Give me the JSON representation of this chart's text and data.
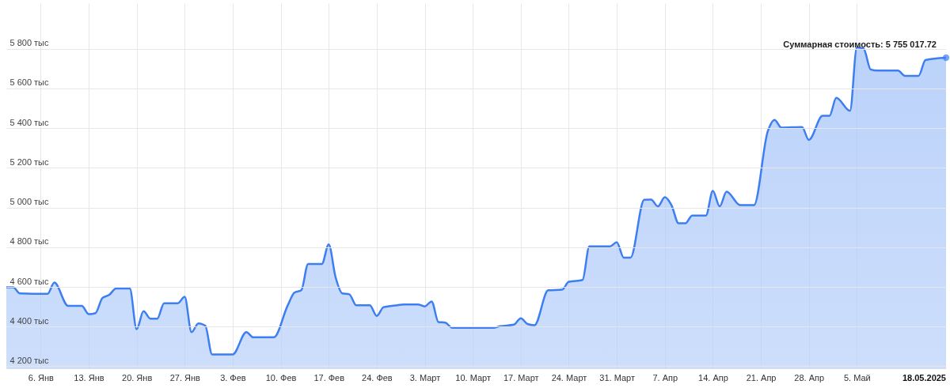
{
  "chart_data": {
    "type": "area",
    "x": [
      "2025-01-01",
      "2025-01-02",
      "2025-01-03",
      "2025-01-07",
      "2025-01-08",
      "2025-01-10",
      "2025-01-12",
      "2025-01-13",
      "2025-01-14",
      "2025-01-15",
      "2025-01-16",
      "2025-01-17",
      "2025-01-19",
      "2025-01-20",
      "2025-01-21",
      "2025-01-22",
      "2025-01-23",
      "2025-01-24",
      "2025-01-26",
      "2025-01-27",
      "2025-01-28",
      "2025-01-29",
      "2025-01-30",
      "2025-01-31",
      "2025-02-03",
      "2025-02-05",
      "2025-02-06",
      "2025-02-09",
      "2025-02-11",
      "2025-02-12",
      "2025-02-13",
      "2025-02-14",
      "2025-02-16",
      "2025-02-17",
      "2025-02-18",
      "2025-02-19",
      "2025-02-20",
      "2025-02-21",
      "2025-02-23",
      "2025-02-24",
      "2025-02-25",
      "2025-02-27",
      "2025-02-28",
      "2025-03-02",
      "2025-03-03",
      "2025-03-04",
      "2025-03-05",
      "2025-03-06",
      "2025-03-07",
      "2025-03-13",
      "2025-03-14",
      "2025-03-16",
      "2025-03-17",
      "2025-03-18",
      "2025-03-19",
      "2025-03-21",
      "2025-03-23",
      "2025-03-24",
      "2025-03-26",
      "2025-03-27",
      "2025-03-30",
      "2025-03-31",
      "2025-04-01",
      "2025-04-02",
      "2025-04-04",
      "2025-04-05",
      "2025-04-06",
      "2025-04-07",
      "2025-04-08",
      "2025-04-09",
      "2025-04-10",
      "2025-04-11",
      "2025-04-13",
      "2025-04-14",
      "2025-04-15",
      "2025-04-16",
      "2025-04-18",
      "2025-04-20",
      "2025-04-22",
      "2025-04-23",
      "2025-04-24",
      "2025-04-27",
      "2025-04-28",
      "2025-04-30",
      "2025-05-01",
      "2025-05-02",
      "2025-05-04",
      "2025-05-05",
      "2025-05-06",
      "2025-05-07",
      "2025-05-08",
      "2025-05-11",
      "2025-05-12",
      "2025-05-14",
      "2025-05-15",
      "2025-05-18"
    ],
    "series": [
      {
        "color": "#3d7ef0",
        "values": [
          4598,
          4598,
          4567,
          4565,
          4622,
          4505,
          4505,
          4463,
          4468,
          4544,
          4560,
          4592,
          4592,
          4387,
          4478,
          4440,
          4440,
          4518,
          4518,
          4550,
          4372,
          4416,
          4405,
          4260,
          4260,
          4372,
          4346,
          4346,
          4505,
          4571,
          4583,
          4716,
          4716,
          4814,
          4649,
          4567,
          4563,
          4508,
          4508,
          4454,
          4498,
          4508,
          4512,
          4512,
          4502,
          4527,
          4423,
          4420,
          4394,
          4394,
          4402,
          4410,
          4442,
          4413,
          4407,
          4583,
          4586,
          4626,
          4635,
          4804,
          4804,
          4825,
          4748,
          4748,
          5039,
          5040,
          5006,
          5052,
          5010,
          4921,
          4921,
          4960,
          4960,
          5084,
          5006,
          5080,
          5012,
          5012,
          5383,
          5442,
          5403,
          5406,
          5341,
          5462,
          5462,
          5553,
          5488,
          5807,
          5800,
          5696,
          5690,
          5690,
          5664,
          5664,
          5743,
          5755
        ]
      }
    ],
    "xlim": [
      "2025-01-01",
      "2025-05-18"
    ],
    "xticks": [
      {
        "value": "2025-01-06",
        "label": "6. Янв"
      },
      {
        "value": "2025-01-13",
        "label": "13. Янв"
      },
      {
        "value": "2025-01-20",
        "label": "20. Янв"
      },
      {
        "value": "2025-01-27",
        "label": "27. Янв"
      },
      {
        "value": "2025-02-03",
        "label": "3. Фев"
      },
      {
        "value": "2025-02-10",
        "label": "10. Фев"
      },
      {
        "value": "2025-02-17",
        "label": "17. Фев"
      },
      {
        "value": "2025-02-24",
        "label": "24. Фев"
      },
      {
        "value": "2025-03-03",
        "label": "3. Март"
      },
      {
        "value": "2025-03-10",
        "label": "10. Март"
      },
      {
        "value": "2025-03-17",
        "label": "17. Март"
      },
      {
        "value": "2025-03-24",
        "label": "24. Март"
      },
      {
        "value": "2025-03-31",
        "label": "31. Март"
      },
      {
        "value": "2025-04-07",
        "label": "7. Апр"
      },
      {
        "value": "2025-04-14",
        "label": "14. Апр"
      },
      {
        "value": "2025-04-21",
        "label": "21. Апр"
      },
      {
        "value": "2025-04-28",
        "label": "28. Апр"
      },
      {
        "value": "2025-05-05",
        "label": "5. Май"
      }
    ],
    "ylim": [
      4190,
      6030
    ],
    "yticks": [
      {
        "value": 4200,
        "label": "4 200 тыс"
      },
      {
        "value": 4400,
        "label": "4 400 тыс"
      },
      {
        "value": 4600,
        "label": "4 600 тыс"
      },
      {
        "value": 4800,
        "label": "4 800 тыс"
      },
      {
        "value": 5000,
        "label": "5 000 тыс"
      },
      {
        "value": 5200,
        "label": "5 200 тыс"
      },
      {
        "value": 5400,
        "label": "5 400 тыс"
      },
      {
        "value": 5600,
        "label": "5 600 тыс"
      },
      {
        "value": 5800,
        "label": "5 800 тыс"
      }
    ],
    "grid": true,
    "annotations": [
      {
        "text": "Суммарная стоимость: 5 755 017.72",
        "x": "2025-05-18",
        "y": 5755.01772
      },
      {
        "text": "18.05.2025",
        "x": "2025-05-18"
      }
    ]
  }
}
